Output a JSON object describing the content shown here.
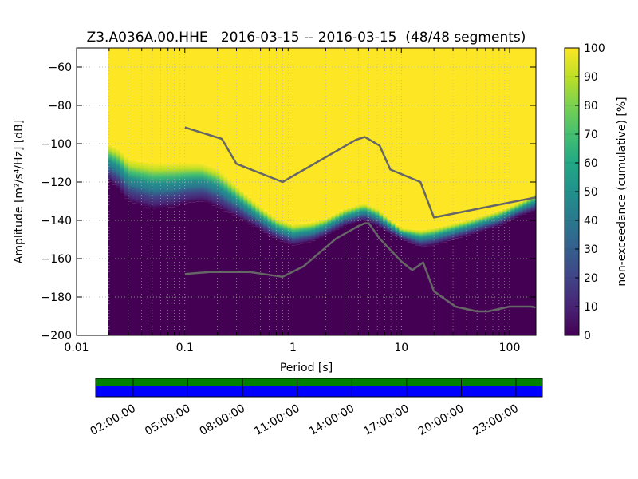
{
  "chart_data": [
    {
      "type": "heatmap",
      "title": "Z3.A036A.00.HHE   2016-03-15 -- 2016-03-15  (48/48 segments)",
      "xlabel": "Period [s]",
      "ylabel": "Amplitude [m²/s⁴/Hz] [dB]",
      "x_scale": "log",
      "xlim": [
        0.01,
        175
      ],
      "ylim": [
        -200,
        -50
      ],
      "x_ticks": [
        {
          "value": 0.01,
          "label": "0.01"
        },
        {
          "value": 0.1,
          "label": "0.1"
        },
        {
          "value": 1,
          "label": "1"
        },
        {
          "value": 10,
          "label": "10"
        },
        {
          "value": 100,
          "label": "100"
        }
      ],
      "y_ticks": [
        {
          "value": -60,
          "label": "−60"
        },
        {
          "value": -80,
          "label": "−80"
        },
        {
          "value": -100,
          "label": "−100"
        },
        {
          "value": -120,
          "label": "−120"
        },
        {
          "value": -140,
          "label": "−140"
        },
        {
          "value": -160,
          "label": "−160"
        },
        {
          "value": -180,
          "label": "−180"
        },
        {
          "value": -200,
          "label": "−200"
        }
      ],
      "grid": true,
      "data_period_range": [
        0.0195,
        175
      ],
      "yellow_boundary": [
        [
          0.0195,
          -100
        ],
        [
          0.025,
          -103
        ],
        [
          0.03,
          -108
        ],
        [
          0.05,
          -110
        ],
        [
          0.08,
          -110
        ],
        [
          0.1,
          -110
        ],
        [
          0.14,
          -110
        ],
        [
          0.2,
          -113
        ],
        [
          0.3,
          -122
        ],
        [
          0.5,
          -133
        ],
        [
          0.7,
          -139
        ],
        [
          1.0,
          -142
        ],
        [
          1.5,
          -141
        ],
        [
          2.0,
          -139
        ],
        [
          3.0,
          -134
        ],
        [
          4.5,
          -131
        ],
        [
          6.0,
          -134
        ],
        [
          8.0,
          -140
        ],
        [
          10.0,
          -144
        ],
        [
          15.0,
          -145
        ],
        [
          20.0,
          -144
        ],
        [
          40.0,
          -140
        ],
        [
          80.0,
          -135
        ],
        [
          120.0,
          -131
        ],
        [
          175.0,
          -126
        ]
      ],
      "dark_boundary": [
        [
          0.0195,
          -119
        ],
        [
          0.025,
          -124
        ],
        [
          0.03,
          -130
        ],
        [
          0.05,
          -134
        ],
        [
          0.08,
          -133
        ],
        [
          0.1,
          -131
        ],
        [
          0.15,
          -130
        ],
        [
          0.2,
          -133
        ],
        [
          0.3,
          -138
        ],
        [
          0.5,
          -145
        ],
        [
          0.7,
          -150
        ],
        [
          1.0,
          -153
        ],
        [
          1.5,
          -151
        ],
        [
          2.0,
          -148
        ],
        [
          3.0,
          -143
        ],
        [
          4.5,
          -140
        ],
        [
          6.0,
          -143
        ],
        [
          8.0,
          -147
        ],
        [
          10.0,
          -150
        ],
        [
          15.0,
          -154
        ],
        [
          20.0,
          -153
        ],
        [
          40.0,
          -148
        ],
        [
          80.0,
          -143
        ],
        [
          120.0,
          -138
        ],
        [
          175.0,
          -135
        ]
      ],
      "series": [
        {
          "values": [
            [
              0.1,
              -91.5
            ],
            [
              0.22,
              -97.5
            ],
            [
              0.3,
              -110.5
            ],
            [
              0.8,
              -120
            ],
            [
              3.8,
              -98
            ],
            [
              4.6,
              -96.5
            ],
            [
              6.3,
              -101
            ],
            [
              7.9,
              -113.5
            ],
            [
              15.0,
              -120
            ],
            [
              20.0,
              -138.5
            ],
            [
              175.0,
              -128
            ]
          ],
          "color": "#666666"
        },
        {
          "values": [
            [
              0.1,
              -168
            ],
            [
              0.17,
              -167
            ],
            [
              0.4,
              -167
            ],
            [
              0.8,
              -169.5
            ],
            [
              1.25,
              -164
            ],
            [
              2.5,
              -149.5
            ],
            [
              4.0,
              -143
            ],
            [
              4.6,
              -141.5
            ],
            [
              5.0,
              -141.5
            ],
            [
              6.3,
              -149.5
            ],
            [
              10.0,
              -161.5
            ],
            [
              12.6,
              -166
            ],
            [
              15.9,
              -162
            ],
            [
              20.0,
              -177
            ],
            [
              31.6,
              -185
            ],
            [
              50.0,
              -187.5
            ],
            [
              63.1,
              -187.5
            ],
            [
              100.0,
              -185
            ],
            [
              158.0,
              -185
            ],
            [
              175.0,
              -185.5
            ]
          ],
          "color": "#666666"
        }
      ]
    },
    {
      "type": "colorbar",
      "label": "non-exceedance (cumulative) [%]",
      "range": [
        0,
        100
      ],
      "ticks": [
        0,
        10,
        20,
        30,
        40,
        50,
        60,
        70,
        80,
        90,
        100
      ],
      "colormap": "viridis"
    },
    {
      "type": "timeline",
      "tick_labels": [
        "02:00:00",
        "05:00:00",
        "08:00:00",
        "11:00:00",
        "14:00:00",
        "17:00:00",
        "20:00:00",
        "23:00:00"
      ],
      "bands": [
        {
          "name": "data-available",
          "color": "#008000"
        },
        {
          "name": "processed",
          "color": "#0000ff"
        }
      ]
    }
  ]
}
